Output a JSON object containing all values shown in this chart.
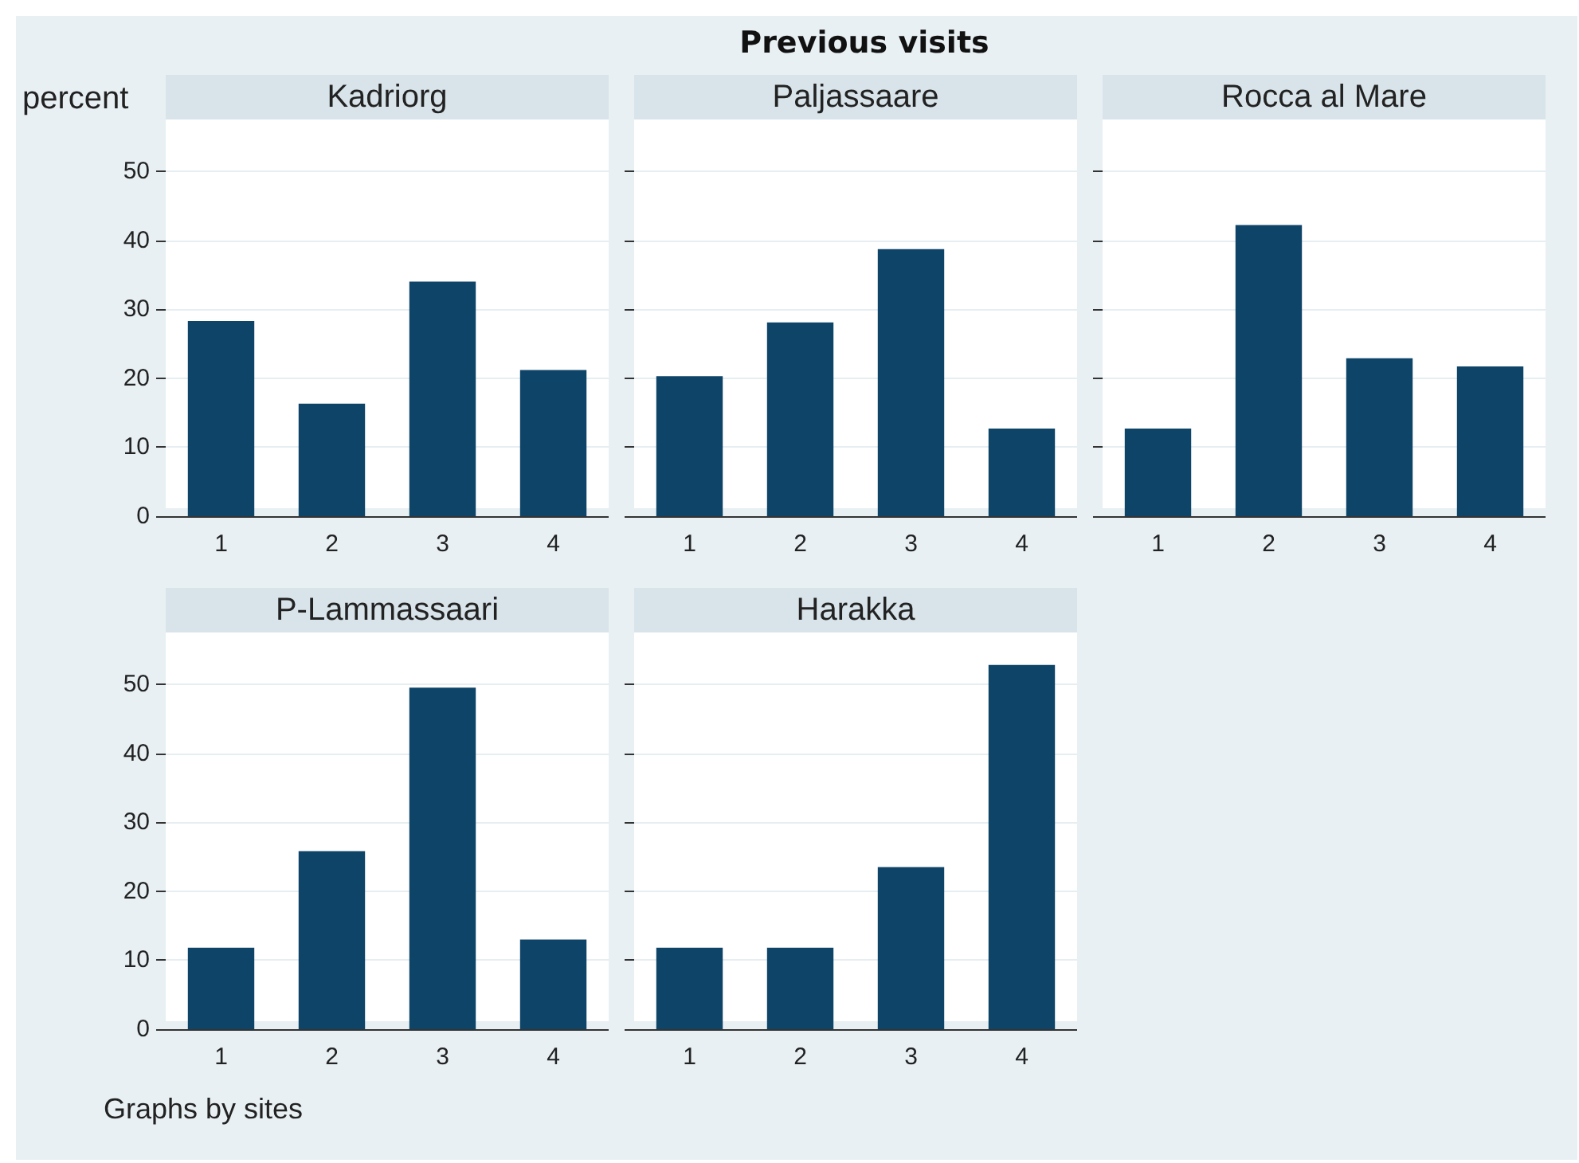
{
  "chart_data": [
    {
      "type": "bar",
      "title": "Kadriorg",
      "ylabel": "percent",
      "categories": [
        "1",
        "2",
        "3",
        "4"
      ],
      "values": [
        28.3,
        16.3,
        34,
        21.2
      ],
      "color": "#0e4468",
      "ylim": [
        0,
        57.5
      ],
      "yticks": [
        0,
        10,
        20,
        30,
        40,
        50
      ],
      "grid": "y"
    },
    {
      "type": "bar",
      "title": "Paljassaare",
      "categories": [
        "1",
        "2",
        "3",
        "4"
      ],
      "values": [
        20.3,
        28.1,
        38.7,
        12.7
      ],
      "color": "#0e4468",
      "ylim": [
        0,
        57.5
      ],
      "yticks": [
        0,
        10,
        20,
        30,
        40,
        50
      ],
      "grid": "y",
      "tick_labels": "x"
    },
    {
      "type": "bar",
      "title": "Rocca al Mare",
      "categories": [
        "1",
        "2",
        "3",
        "4"
      ],
      "values": [
        12.7,
        42.2,
        22.9,
        21.7
      ],
      "color": "#0e4468",
      "ylim": [
        0,
        57.5
      ],
      "yticks": [
        0,
        10,
        20,
        30,
        40,
        50
      ],
      "grid": "y",
      "tick_labels": "x"
    },
    {
      "type": "bar",
      "title": "P-Lammassaari",
      "categories": [
        "1",
        "2",
        "3",
        "4"
      ],
      "values": [
        11.8,
        25.8,
        49.5,
        13
      ],
      "color": "#0e4468",
      "ylim": [
        0,
        57.5
      ],
      "yticks": [
        0,
        10,
        20,
        30,
        40,
        50
      ],
      "grid": "y"
    },
    {
      "type": "bar",
      "title": "Harakka",
      "categories": [
        "1",
        "2",
        "3",
        "4"
      ],
      "values": [
        11.8,
        11.8,
        23.5,
        52.8
      ],
      "color": "#0e4468",
      "ylim": [
        0,
        57.5
      ],
      "yticks": [
        0,
        10,
        20,
        30,
        40,
        50
      ],
      "grid": "y",
      "tick_labels": "x"
    },
    {
      "type": "other",
      "title": "Previous visits",
      "annotations": [
        "Graphs by sites"
      ]
    }
  ]
}
